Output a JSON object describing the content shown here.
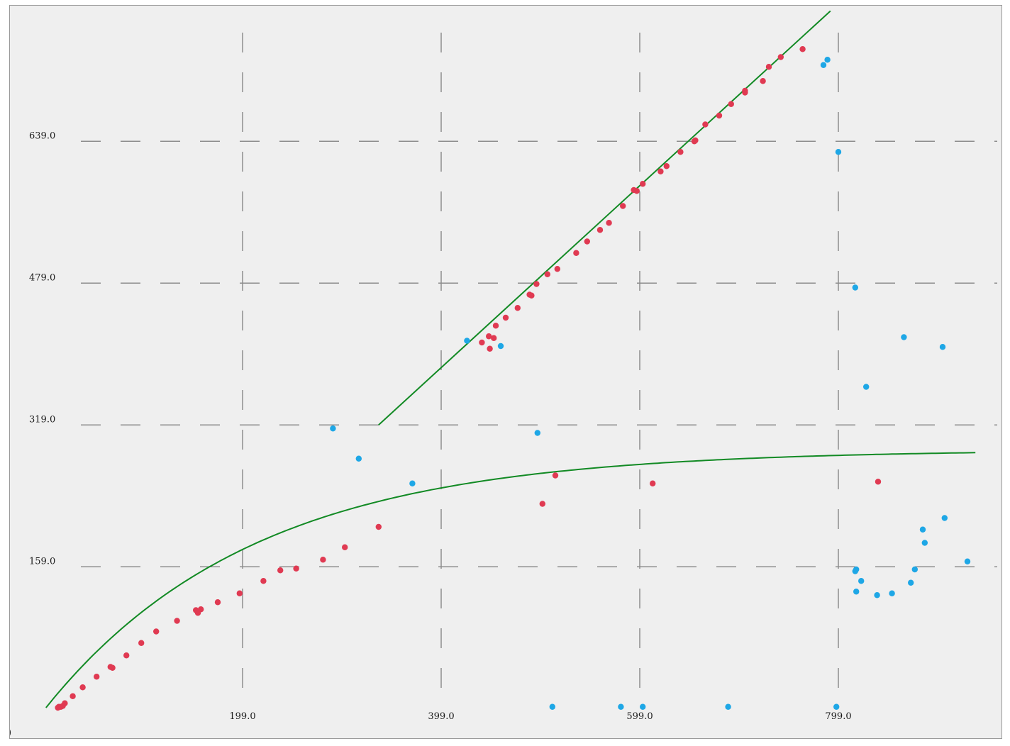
{
  "chart_data": {
    "type": "scatter",
    "title": "",
    "xlabel": "",
    "ylabel": "",
    "xlim": [
      -15,
      970
    ],
    "ylim": [
      -5,
      795
    ],
    "x_ticks": [
      199,
      399,
      599,
      799
    ],
    "x_tick_labels": [
      "199.0",
      "399.0",
      "599.0",
      "799.0"
    ],
    "y_ticks": [
      159,
      319,
      479,
      639
    ],
    "y_tick_labels": [
      "159.0",
      "319.0",
      "479.0",
      "639.0"
    ],
    "corner_label": ")",
    "grid": true,
    "colors": {
      "red_points": "#e03a52",
      "blue_points": "#1ea7e6",
      "fit_lines": "#128a24",
      "grid": "#8d8d8d",
      "background": "#efefef"
    },
    "series": [
      {
        "color": "#e03a52",
        "points": [
          [
            13,
            0
          ],
          [
            14,
            1
          ],
          [
            16,
            1
          ],
          [
            18,
            2
          ],
          [
            20,
            5
          ],
          [
            28,
            13
          ],
          [
            38,
            23
          ],
          [
            52,
            35
          ],
          [
            66,
            46
          ],
          [
            68,
            45
          ],
          [
            82,
            59
          ],
          [
            97,
            73
          ],
          [
            112,
            86
          ],
          [
            133,
            98
          ],
          [
            152,
            110
          ],
          [
            157,
            111
          ],
          [
            154,
            107
          ],
          [
            174,
            119
          ],
          [
            196,
            129
          ],
          [
            220,
            143
          ],
          [
            237,
            155
          ],
          [
            253,
            157
          ],
          [
            280,
            167
          ],
          [
            302,
            181
          ],
          [
            336,
            204
          ],
          [
            440,
            412
          ],
          [
            447,
            419
          ],
          [
            448,
            405
          ],
          [
            452,
            417
          ],
          [
            454,
            431
          ],
          [
            464,
            440
          ],
          [
            476,
            451
          ],
          [
            488,
            466
          ],
          [
            490,
            465
          ],
          [
            495,
            478
          ],
          [
            506,
            489
          ],
          [
            516,
            495
          ],
          [
            535,
            513
          ],
          [
            546,
            526
          ],
          [
            559,
            539
          ],
          [
            568,
            547
          ],
          [
            582,
            566
          ],
          [
            593,
            584
          ],
          [
            596,
            583
          ],
          [
            602,
            591
          ],
          [
            620,
            605
          ],
          [
            626,
            611
          ],
          [
            640,
            627
          ],
          [
            654,
            639
          ],
          [
            655,
            640
          ],
          [
            665,
            658
          ],
          [
            679,
            668
          ],
          [
            691,
            681
          ],
          [
            705,
            694
          ],
          [
            705,
            696
          ],
          [
            723,
            707
          ],
          [
            729,
            723
          ],
          [
            741,
            734
          ],
          [
            763,
            743
          ],
          [
            514,
            262
          ],
          [
            501,
            230
          ],
          [
            612,
            253
          ],
          [
            839,
            255
          ]
        ]
      },
      {
        "color": "#1ea7e6",
        "points": [
          [
            784,
            725
          ],
          [
            788,
            731
          ],
          [
            799,
            627
          ],
          [
            816,
            474
          ],
          [
            827,
            362
          ],
          [
            865,
            418
          ],
          [
            904,
            407
          ],
          [
            425,
            414
          ],
          [
            459,
            408
          ],
          [
            496,
            310
          ],
          [
            290,
            315
          ],
          [
            316,
            281
          ],
          [
            370,
            253
          ],
          [
            511,
            1
          ],
          [
            602,
            1
          ],
          [
            580,
            1
          ],
          [
            688,
            1
          ],
          [
            797,
            1
          ],
          [
            906,
            214
          ],
          [
            886,
            186
          ],
          [
            884,
            201
          ],
          [
            876,
            156
          ],
          [
            872,
            141
          ],
          [
            853,
            129
          ],
          [
            838,
            127
          ],
          [
            817,
            131
          ],
          [
            822,
            143
          ],
          [
            817,
            156
          ],
          [
            816,
            154
          ],
          [
            929,
            165
          ]
        ]
      }
    ],
    "fit_lines": [
      {
        "kind": "straight",
        "from": [
          336,
          319
        ],
        "to": [
          791,
          786
        ]
      },
      {
        "kind": "saturating-curve",
        "x_start": 1,
        "x_end": 939,
        "y0": 0,
        "y_max": 291,
        "rate": 0.0048
      }
    ]
  }
}
